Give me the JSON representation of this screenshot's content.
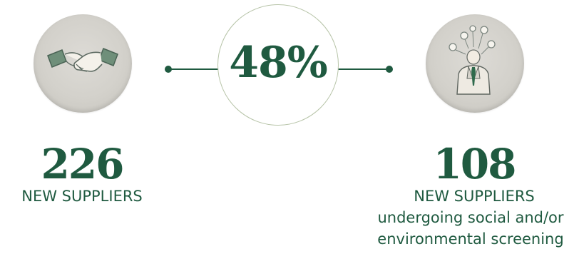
{
  "center": {
    "percentage": "48%"
  },
  "left_stat": {
    "number": "226",
    "label": "NEW SUPPLIERS"
  },
  "right_stat": {
    "number": "108",
    "label": "NEW SUPPLIERS",
    "description_line1": "undergoing social and/or",
    "description_line2": "environmental screening"
  },
  "icons": {
    "left": "handshake-icon",
    "right": "thinking-person-icon"
  },
  "colors": {
    "accent_green": "#1f5a40",
    "circle_border": "#b7c4a8",
    "badge_gray": "#d3d1cb"
  }
}
